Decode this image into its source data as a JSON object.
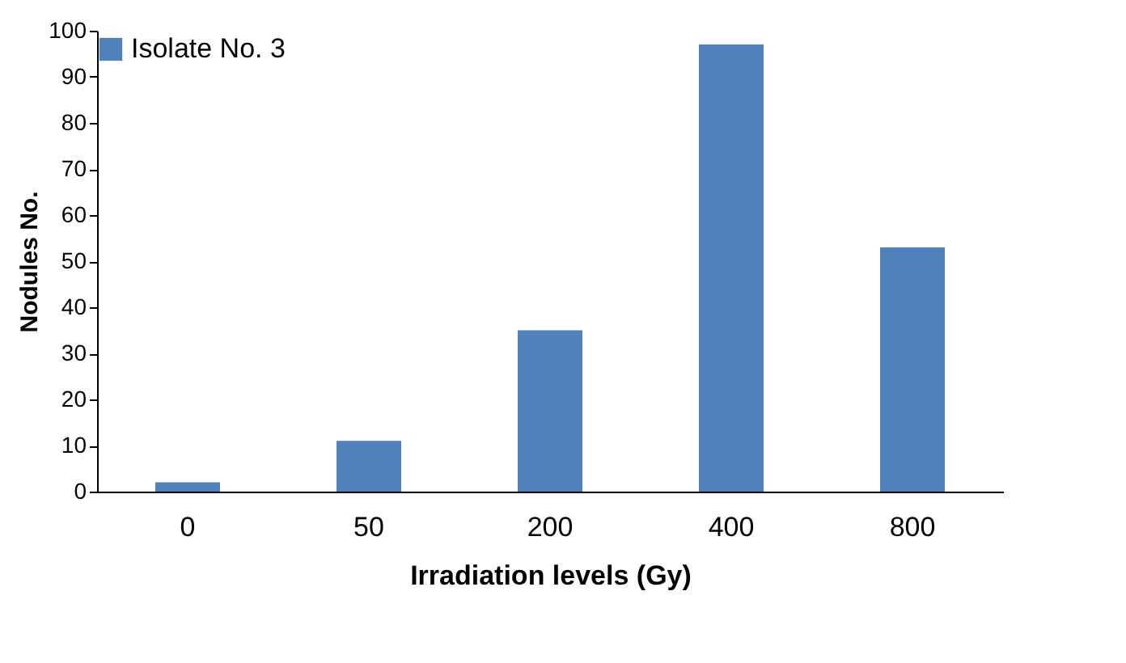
{
  "chart_data": {
    "type": "bar",
    "xlabel": "Irradiation levels (Gy)",
    "ylabel": "Nodules  No.",
    "categories": [
      "0",
      "50",
      "200",
      "400",
      "800"
    ],
    "series": [
      {
        "name": "Isolate No. 3",
        "color": "#4f81bd",
        "values": [
          2,
          11,
          35,
          97,
          53
        ]
      }
    ],
    "ylim": [
      0,
      100
    ],
    "yticks": [
      0,
      10,
      20,
      30,
      40,
      50,
      60,
      70,
      80,
      90,
      100
    ],
    "grid": false,
    "legend": "top"
  }
}
